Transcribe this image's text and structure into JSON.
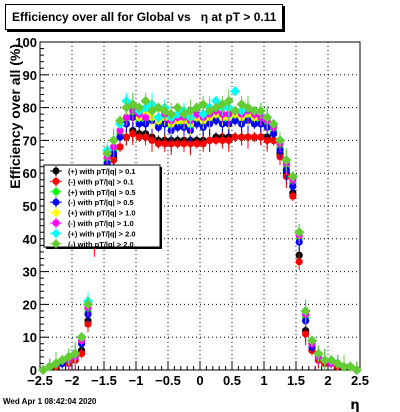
{
  "chart_data": {
    "type": "scatter",
    "title": "Efficiency over all for Global vs   η at pT > 0.11",
    "xlabel": "η",
    "ylabel": "Efficiency over all (%)",
    "xlim": [
      -2.5,
      2.5
    ],
    "ylim": [
      0,
      100
    ],
    "grid": true,
    "xticks": [
      "−2.5",
      "−2",
      "−1.5",
      "−1",
      "−0.5",
      "0",
      "0.5",
      "1",
      "1.5",
      "2",
      "2.5"
    ],
    "yticks": [
      "0",
      "10",
      "20",
      "30",
      "40",
      "50",
      "60",
      "70",
      "80",
      "90",
      "100"
    ],
    "legend_position": "left-middle",
    "x": [
      -2.45,
      -2.35,
      -2.25,
      -2.15,
      -2.05,
      -1.95,
      -1.85,
      -1.75,
      -1.65,
      -1.55,
      -1.45,
      -1.35,
      -1.25,
      -1.15,
      -1.05,
      -0.95,
      -0.85,
      -0.75,
      -0.65,
      -0.55,
      -0.45,
      -0.35,
      -0.25,
      -0.15,
      -0.05,
      0.05,
      0.15,
      0.25,
      0.35,
      0.45,
      0.55,
      0.65,
      0.75,
      0.85,
      0.95,
      1.05,
      1.15,
      1.25,
      1.35,
      1.45,
      1.55,
      1.65,
      1.75,
      1.85,
      1.95,
      2.05,
      2.15,
      2.25,
      2.35,
      2.45
    ],
    "series": [
      {
        "name": "(+) with pT/|q| > 0.1",
        "color": "#000000",
        "marker": "circle",
        "values": [
          0,
          1,
          1,
          2,
          2,
          3,
          6,
          15,
          40,
          56,
          62,
          65,
          68,
          71,
          73,
          72,
          72,
          71,
          70,
          70,
          70,
          70,
          70,
          70,
          70,
          70,
          70,
          71,
          71,
          71,
          71,
          71,
          71,
          71,
          71,
          71,
          70,
          66,
          60,
          54,
          35,
          12,
          6,
          3,
          2,
          2,
          1,
          1,
          1,
          0
        ]
      },
      {
        "name": "(-) with pT/|q| > 0.1",
        "color": "#ff0000",
        "marker": "circle",
        "values": [
          0,
          1,
          1,
          2,
          2,
          3,
          5,
          14,
          38,
          55,
          62,
          64,
          68,
          71,
          72,
          71,
          71,
          70,
          69,
          69,
          69,
          69,
          69,
          69,
          69,
          69,
          70,
          70,
          70,
          70,
          71,
          71,
          71,
          71,
          71,
          70,
          70,
          65,
          59,
          53,
          33,
          11,
          6,
          3,
          2,
          2,
          1,
          1,
          1,
          0
        ]
      },
      {
        "name": "(+) with pT/|q| > 0.5",
        "color": "#00ff00",
        "marker": "circle",
        "values": [
          0,
          1,
          2,
          2,
          3,
          4,
          8,
          18,
          44,
          58,
          64,
          67,
          72,
          76,
          78,
          76,
          76,
          77,
          75,
          76,
          74,
          75,
          75,
          74,
          76,
          75,
          76,
          77,
          76,
          76,
          77,
          76,
          77,
          76,
          76,
          75,
          73,
          68,
          62,
          57,
          40,
          16,
          8,
          4,
          3,
          2,
          2,
          1,
          1,
          0
        ]
      },
      {
        "name": "(-) with pT/|q| > 0.5",
        "color": "#0000ff",
        "marker": "circle",
        "values": [
          0,
          1,
          2,
          2,
          3,
          4,
          8,
          17,
          43,
          57,
          63,
          66,
          71,
          75,
          77,
          75,
          75,
          76,
          74,
          75,
          73,
          74,
          74,
          73,
          75,
          74,
          75,
          76,
          75,
          75,
          76,
          75,
          76,
          75,
          75,
          74,
          72,
          67,
          61,
          56,
          39,
          15,
          7,
          4,
          3,
          2,
          2,
          1,
          1,
          0
        ]
      },
      {
        "name": "(+) with pT/|q| > 1.0",
        "color": "#ffff00",
        "marker": "circle",
        "values": [
          0,
          1,
          2,
          3,
          3,
          4,
          9,
          19,
          45,
          59,
          65,
          68,
          73,
          77,
          79,
          77,
          78,
          77,
          76,
          77,
          75,
          76,
          76,
          75,
          77,
          76,
          77,
          78,
          77,
          77,
          78,
          77,
          78,
          77,
          77,
          76,
          74,
          69,
          63,
          58,
          41,
          17,
          8,
          4,
          3,
          2,
          2,
          1,
          1,
          0
        ]
      },
      {
        "name": "(-) with pT/|q| > 1.0",
        "color": "#ff00ff",
        "marker": "circle",
        "values": [
          0,
          1,
          2,
          3,
          3,
          4,
          9,
          19,
          45,
          59,
          65,
          68,
          73,
          77,
          79,
          78,
          77,
          79,
          77,
          78,
          76,
          77,
          77,
          76,
          78,
          77,
          78,
          79,
          78,
          78,
          79,
          78,
          79,
          78,
          77,
          76,
          74,
          69,
          63,
          58,
          41,
          17,
          8,
          4,
          3,
          2,
          2,
          1,
          1,
          0
        ]
      },
      {
        "name": "(+) with pT/|q| > 2.0",
        "color": "#00ffff",
        "marker": "diamond",
        "values": [
          0,
          1,
          2,
          3,
          4,
          5,
          10,
          21,
          47,
          61,
          67,
          70,
          75,
          82,
          81,
          79,
          80,
          81,
          77,
          80,
          77,
          78,
          79,
          77,
          80,
          78,
          80,
          82,
          80,
          80,
          85,
          79,
          80,
          79,
          79,
          77,
          75,
          70,
          64,
          59,
          42,
          18,
          9,
          5,
          3,
          3,
          2,
          1,
          1,
          0
        ]
      },
      {
        "name": "(-) with pT/|q| > 2.0",
        "color": "#66cc33",
        "marker": "diamond",
        "values": [
          0,
          1,
          2,
          3,
          4,
          5,
          10,
          20,
          46,
          60,
          66,
          70,
          76,
          80,
          81,
          80,
          82,
          79,
          80,
          79,
          78,
          80,
          78,
          79,
          80,
          81,
          79,
          80,
          81,
          82,
          79,
          81,
          80,
          79,
          79,
          77,
          75,
          70,
          64,
          59,
          42,
          18,
          9,
          5,
          3,
          3,
          2,
          1,
          1,
          0
        ]
      }
    ]
  },
  "footer": {
    "timestamp": "Wed Apr  1 08:42:04 2020"
  }
}
